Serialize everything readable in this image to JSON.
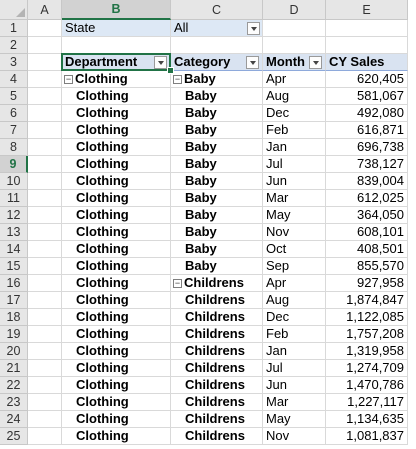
{
  "columns": [
    "A",
    "B",
    "C",
    "D",
    "E"
  ],
  "rows": [
    "1",
    "2",
    "3",
    "4",
    "5",
    "6",
    "7",
    "8",
    "9",
    "10",
    "11",
    "12",
    "13",
    "14",
    "15",
    "16",
    "17",
    "18",
    "19",
    "20",
    "21",
    "22",
    "23",
    "24",
    "25"
  ],
  "filter": {
    "label": "State",
    "value": "All"
  },
  "pivot_headers": {
    "department": "Department",
    "category": "Category",
    "month": "Month",
    "sales": "CY Sales"
  },
  "collapse_symbol": "⊟",
  "data_rows": [
    {
      "dept": "Clothing",
      "cat": "Baby",
      "month": "Apr",
      "sales": "620,405",
      "dept_toggle": true,
      "cat_toggle": true
    },
    {
      "dept": "Clothing",
      "cat": "Baby",
      "month": "Aug",
      "sales": "581,067"
    },
    {
      "dept": "Clothing",
      "cat": "Baby",
      "month": "Dec",
      "sales": "492,080"
    },
    {
      "dept": "Clothing",
      "cat": "Baby",
      "month": "Feb",
      "sales": "616,871"
    },
    {
      "dept": "Clothing",
      "cat": "Baby",
      "month": "Jan",
      "sales": "696,738"
    },
    {
      "dept": "Clothing",
      "cat": "Baby",
      "month": "Jul",
      "sales": "738,127"
    },
    {
      "dept": "Clothing",
      "cat": "Baby",
      "month": "Jun",
      "sales": "839,004"
    },
    {
      "dept": "Clothing",
      "cat": "Baby",
      "month": "Mar",
      "sales": "612,025"
    },
    {
      "dept": "Clothing",
      "cat": "Baby",
      "month": "May",
      "sales": "364,050"
    },
    {
      "dept": "Clothing",
      "cat": "Baby",
      "month": "Nov",
      "sales": "608,101"
    },
    {
      "dept": "Clothing",
      "cat": "Baby",
      "month": "Oct",
      "sales": "408,501"
    },
    {
      "dept": "Clothing",
      "cat": "Baby",
      "month": "Sep",
      "sales": "855,570"
    },
    {
      "dept": "Clothing",
      "cat": "Childrens",
      "month": "Apr",
      "sales": "927,958",
      "cat_toggle": true
    },
    {
      "dept": "Clothing",
      "cat": "Childrens",
      "month": "Aug",
      "sales": "1,874,847"
    },
    {
      "dept": "Clothing",
      "cat": "Childrens",
      "month": "Dec",
      "sales": "1,122,085"
    },
    {
      "dept": "Clothing",
      "cat": "Childrens",
      "month": "Feb",
      "sales": "1,757,208"
    },
    {
      "dept": "Clothing",
      "cat": "Childrens",
      "month": "Jan",
      "sales": "1,319,958"
    },
    {
      "dept": "Clothing",
      "cat": "Childrens",
      "month": "Jul",
      "sales": "1,274,709"
    },
    {
      "dept": "Clothing",
      "cat": "Childrens",
      "month": "Jun",
      "sales": "1,470,786"
    },
    {
      "dept": "Clothing",
      "cat": "Childrens",
      "month": "Mar",
      "sales": "1,227,117"
    },
    {
      "dept": "Clothing",
      "cat": "Childrens",
      "month": "May",
      "sales": "1,134,635"
    },
    {
      "dept": "Clothing",
      "cat": "Childrens",
      "month": "Nov",
      "sales": "1,081,837"
    }
  ],
  "selected": {
    "column": "B",
    "row": "9"
  },
  "colors": {
    "accent": "#217346",
    "filter_fill": "#dde8f5",
    "header_fill": "#d9e3f1"
  }
}
